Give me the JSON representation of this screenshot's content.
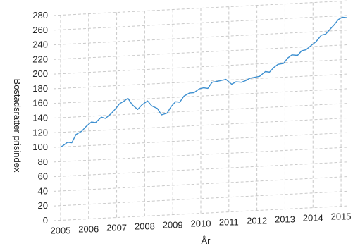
{
  "chart_data": {
    "type": "line",
    "xlabel": "År",
    "ylabel": "Bostadsrätter  prisindex",
    "ylim": [
      0,
      280
    ],
    "yticks": [
      0,
      20,
      40,
      60,
      80,
      100,
      120,
      140,
      160,
      180,
      200,
      220,
      240,
      260,
      280
    ],
    "xlim": [
      2004.75,
      2015.3
    ],
    "xticks": [
      2005,
      2006,
      2007,
      2008,
      2009,
      2010,
      2011,
      2012,
      2013,
      2014,
      2015
    ],
    "grid": true,
    "line_color": "#3c8fd0",
    "series": [
      {
        "x": [
          2005.0,
          2005.1,
          2005.25,
          2005.4,
          2005.55,
          2005.75,
          2005.9,
          2006.1,
          2006.25,
          2006.45,
          2006.6,
          2006.8,
          2006.95,
          2007.1,
          2007.25,
          2007.4,
          2007.55,
          2007.75,
          2007.9,
          2008.1,
          2008.25,
          2008.45,
          2008.6,
          2008.8,
          2008.95,
          2009.1,
          2009.25,
          2009.4,
          2009.6,
          2009.75,
          2009.95,
          2010.1,
          2010.25,
          2010.4,
          2010.6,
          2010.75,
          2010.9,
          2011.1,
          2011.25,
          2011.45,
          2011.6,
          2011.75,
          2011.95,
          2012.1,
          2012.3,
          2012.45,
          2012.6,
          2012.75,
          2012.95,
          2013.1,
          2013.25,
          2013.45,
          2013.6,
          2013.75,
          2013.95,
          2014.1,
          2014.3,
          2014.45,
          2014.6,
          2014.75,
          2014.9,
          2015.05,
          2015.2
        ],
        "y": [
          100,
          102,
          106,
          105,
          116,
          120,
          126,
          132,
          131,
          138,
          136,
          142,
          148,
          155,
          158,
          162,
          153,
          146,
          152,
          157,
          150,
          146,
          137,
          139,
          148,
          154,
          153,
          161,
          165,
          165,
          170,
          171,
          170,
          178,
          179,
          180,
          181,
          174,
          177,
          176,
          178,
          181,
          182,
          183,
          189,
          188,
          194,
          198,
          199,
          206,
          210,
          209,
          215,
          216,
          222,
          226,
          235,
          236,
          242,
          248,
          255,
          258,
          257
        ]
      }
    ]
  }
}
